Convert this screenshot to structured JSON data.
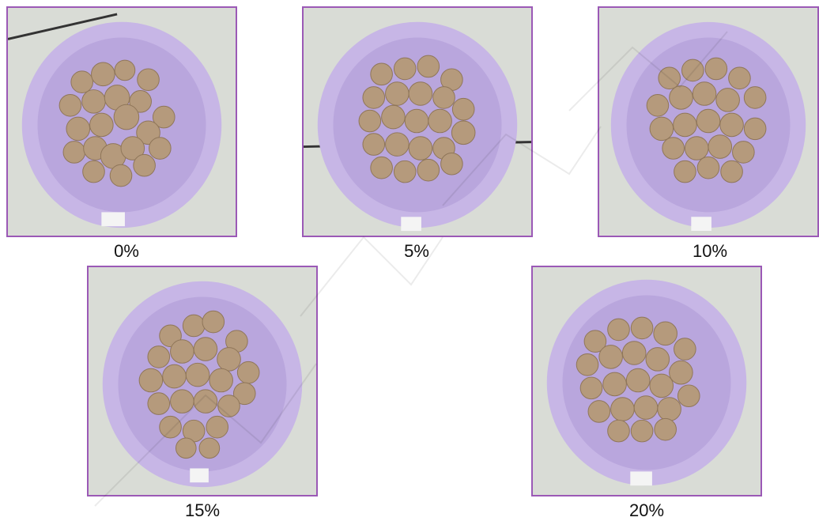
{
  "panels": [
    {
      "caption": "0%",
      "bowl_tag": "0%"
    },
    {
      "caption": "5%",
      "bowl_tag": "5%"
    },
    {
      "caption": "10%",
      "bowl_tag": "10%"
    },
    {
      "caption": "15%",
      "bowl_tag": "15%"
    },
    {
      "caption": "20%",
      "bowl_tag": "20%"
    }
  ],
  "colors": {
    "frame": "#9b59b6",
    "bowl": "#c7b6e6",
    "background_surface": "#d9dcd6",
    "dumpling": "#b59a7c"
  }
}
